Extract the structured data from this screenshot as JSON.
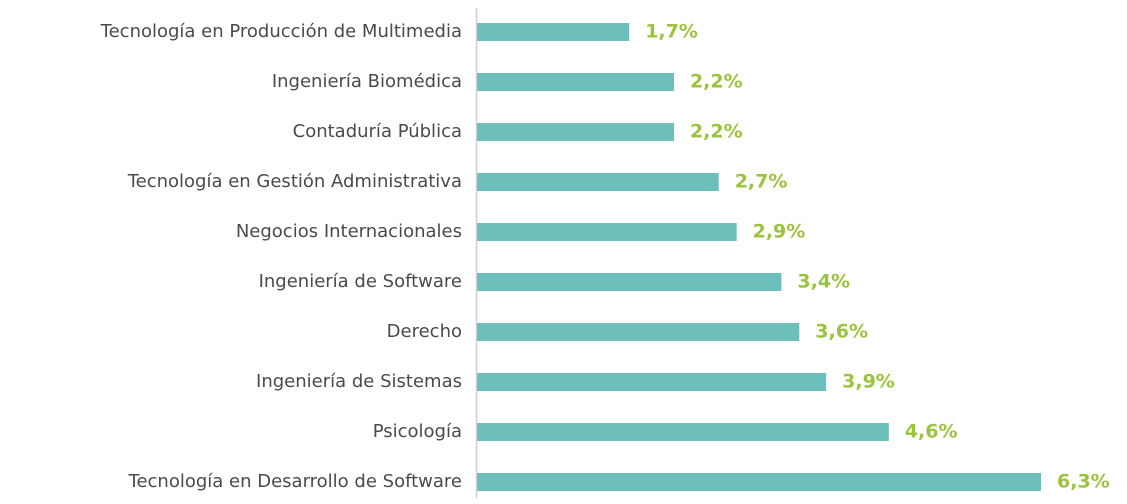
{
  "chart_data": {
    "type": "bar",
    "orientation": "horizontal",
    "categories": [
      "Tecnología en Producción de Multimedia",
      "Ingeniería Biomédica",
      "Contaduría Pública",
      "Tecnología en Gestión Administrativa",
      "Negocios Internacionales",
      "Ingeniería de Software",
      "Derecho",
      "Ingeniería de Sistemas",
      "Psicología",
      "Tecnología en Desarrollo de Software"
    ],
    "values": [
      1.7,
      2.2,
      2.2,
      2.7,
      2.9,
      3.4,
      3.6,
      3.9,
      4.6,
      6.3
    ],
    "value_labels": [
      "1,7%",
      "2,2%",
      "2,2%",
      "2,7%",
      "2,9%",
      "3,4%",
      "3,6%",
      "3,9%",
      "4,6%",
      "6,3%"
    ],
    "color": "#6cbfbb",
    "label_color": "#9cc33d"
  }
}
